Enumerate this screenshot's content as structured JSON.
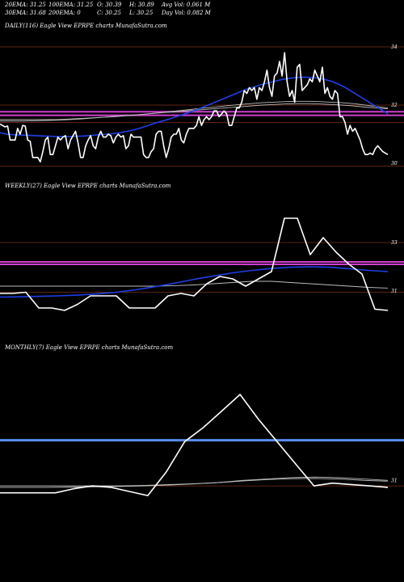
{
  "header": {
    "row1": [
      {
        "label": "20EMA: 31.25"
      },
      {
        "label": "100EMA: 31.25"
      },
      {
        "label": "O: 30.39"
      },
      {
        "label": "H: 30.89"
      },
      {
        "label": "Avg Vol: 0.061 M"
      }
    ],
    "row2": [
      {
        "label": "30EMA: 31.68"
      },
      {
        "label": "200EMA: 0"
      },
      {
        "label": "C: 30.25"
      },
      {
        "label": "L: 30.25"
      },
      {
        "label": "Day Vol: 0.082 M"
      }
    ]
  },
  "colors": {
    "background": "#000000",
    "price": "#ffffff",
    "ema_blue": "#1f3fe8",
    "level_magenta": "#d040d0",
    "level_blue": "#5a8cf0",
    "level_brown": "#7a3018",
    "ma_gray": "#bdbdbd"
  },
  "chart_data": [
    {
      "type": "line",
      "title": "DAILY(116) Eagle   View  EPRPE charts MunafaSutra.com",
      "ylim": [
        29.5,
        34.5
      ],
      "yticks": [
        "34",
        "32",
        "30"
      ],
      "hlines": [
        {
          "y": 34.0,
          "color": "brown"
        },
        {
          "y": 32.0,
          "color": "brown"
        },
        {
          "y": 31.77,
          "color": "magenta"
        },
        {
          "y": 31.65,
          "color": "magenta"
        },
        {
          "y": 31.4,
          "color": "brown"
        },
        {
          "y": 29.9,
          "color": "brown"
        }
      ],
      "series": [
        {
          "color": "white",
          "values": [
            31.35,
            31.3,
            31.25,
            31.28,
            30.8,
            30.8,
            30.8,
            31.2,
            31.0,
            31.3,
            31.28,
            30.8,
            30.75,
            30.2,
            30.2,
            30.2,
            30.05,
            30.4,
            30.8,
            30.9,
            30.3,
            30.3,
            30.6,
            30.9,
            30.8,
            30.9,
            30.95,
            30.5,
            30.8,
            30.95,
            31.1,
            30.7,
            30.2,
            30.2,
            30.6,
            30.8,
            30.95,
            30.6,
            30.5,
            30.9,
            31.1,
            30.9,
            30.9,
            31.0,
            30.95,
            30.7,
            30.9,
            31.0,
            30.9,
            30.95,
            30.5,
            30.6,
            31.0,
            30.9,
            30.9,
            30.9,
            30.9,
            30.3,
            30.2,
            30.2,
            30.4,
            30.5,
            31.0,
            31.1,
            31.1,
            30.6,
            30.2,
            30.5,
            30.9,
            31.0,
            31.0,
            31.2,
            30.8,
            30.7,
            31.0,
            31.2,
            31.2,
            31.2,
            31.3,
            31.6,
            31.3,
            31.5,
            31.6,
            31.5,
            31.6,
            31.8,
            31.8,
            31.6,
            31.7,
            31.8,
            31.7,
            31.3,
            31.3,
            31.6,
            31.9,
            31.9,
            32.1,
            32.5,
            32.4,
            32.6,
            32.5,
            32.6,
            32.2,
            32.6,
            32.5,
            32.8,
            33.2,
            32.6,
            32.3,
            33.0,
            33.1,
            33.5,
            33.0,
            33.8,
            32.8,
            32.3,
            32.5,
            32.1,
            33.3,
            33.4,
            32.5,
            32.6,
            32.7,
            32.9,
            32.8,
            33.2,
            33.0,
            32.8,
            33.3,
            32.4,
            32.6,
            32.3,
            32.2,
            32.5,
            32.4,
            31.6,
            31.6,
            31.4,
            31.0,
            31.3,
            31.1,
            31.2,
            31.0,
            30.8,
            30.5,
            30.3,
            30.3,
            30.35,
            30.3,
            30.5,
            30.6,
            30.5,
            30.4,
            30.35,
            30.3
          ]
        },
        {
          "color": "blue",
          "values": [
            31.05,
            31.0,
            30.98,
            30.97,
            30.96,
            30.95,
            30.94,
            30.93,
            30.92,
            30.92,
            30.92,
            30.93,
            30.94,
            30.96,
            30.98,
            31.0,
            31.02,
            31.05,
            31.1,
            31.15,
            31.22,
            31.3,
            31.38,
            31.45,
            31.52,
            31.6,
            31.68,
            31.76,
            31.85,
            31.95,
            32.05,
            32.15,
            32.25,
            32.35,
            32.45,
            32.55,
            32.62,
            32.7,
            32.76,
            32.82,
            32.88,
            32.92,
            32.95,
            32.96,
            32.95,
            32.93,
            32.88,
            32.82,
            32.72,
            32.6,
            32.45,
            32.3,
            32.15,
            32.0,
            31.85,
            31.7
          ]
        },
        {
          "color": "gray",
          "values": [
            31.5,
            31.5,
            31.5,
            31.5,
            31.5,
            31.5,
            31.52,
            31.54,
            31.56,
            31.58,
            31.6,
            31.63,
            31.66,
            31.7,
            31.74,
            31.78,
            31.82,
            31.86,
            31.9,
            31.94,
            31.98,
            32.02,
            32.05,
            32.08,
            32.1,
            32.12,
            32.13,
            32.13,
            32.12,
            32.1,
            32.08,
            32.05,
            32.0,
            31.95,
            31.9
          ]
        },
        {
          "color": "gray",
          "values": [
            31.45,
            31.45,
            31.45,
            31.46,
            31.47,
            31.48,
            31.5,
            31.52,
            31.55,
            31.58,
            31.61,
            31.64,
            31.67,
            31.7,
            31.73,
            31.76,
            31.79,
            31.82,
            31.85,
            31.88,
            31.91,
            31.94,
            31.97,
            32.0,
            32.02,
            32.04,
            32.05,
            32.05,
            32.04,
            32.02,
            32.0,
            31.97,
            31.93,
            31.9,
            31.87
          ]
        }
      ]
    },
    {
      "type": "line",
      "title": "WEEKLY(27) Eagle   View  EPRPE charts MunafaSutra.com",
      "ylim": [
        29.0,
        35.0
      ],
      "yticks": [
        "33",
        "31"
      ],
      "hlines": [
        {
          "y": 33.0,
          "color": "brown"
        },
        {
          "y": 32.2,
          "color": "magenta"
        },
        {
          "y": 32.1,
          "color": "magenta"
        },
        {
          "y": 30.95,
          "color": "brown"
        }
      ],
      "series": [
        {
          "color": "white",
          "values": [
            30.9,
            30.9,
            30.95,
            30.3,
            30.3,
            30.2,
            30.45,
            30.8,
            30.8,
            30.8,
            30.3,
            30.3,
            30.3,
            30.8,
            30.9,
            30.8,
            31.3,
            31.6,
            31.5,
            31.2,
            31.5,
            31.8,
            34.0,
            34.0,
            32.5,
            33.2,
            32.6,
            32.1,
            31.7,
            30.25,
            30.2
          ]
        },
        {
          "color": "blue",
          "values": [
            30.75,
            30.76,
            30.78,
            30.8,
            30.83,
            30.88,
            30.95,
            31.05,
            31.18,
            31.32,
            31.48,
            31.62,
            31.75,
            31.85,
            31.93,
            31.98,
            32.0,
            31.98,
            31.92,
            31.85,
            31.8
          ]
        },
        {
          "color": "gray",
          "values": [
            31.2,
            31.2,
            31.2,
            31.2,
            31.2,
            31.2,
            31.2,
            31.2,
            31.2,
            31.22,
            31.25,
            31.3,
            31.35,
            31.4,
            31.4,
            31.35,
            31.3,
            31.25,
            31.2,
            31.15,
            31.12
          ]
        }
      ]
    },
    {
      "type": "line",
      "title": "MONTHLY(7) Eagle   View  EPRPE charts MunafaSutra.com",
      "ylim": [
        28.5,
        35.5
      ],
      "yticks": [
        "31"
      ],
      "hlines": [
        {
          "y": 32.45,
          "color": "blue"
        },
        {
          "y": 30.8,
          "color": "brown"
        }
      ],
      "series": [
        {
          "color": "white",
          "values": [
            30.55,
            30.55,
            30.55,
            30.55,
            30.7,
            30.8,
            30.75,
            30.6,
            30.45,
            31.3,
            32.4,
            32.9,
            33.5,
            34.1,
            33.2,
            32.4,
            31.6,
            30.8,
            30.9,
            30.85,
            30.8,
            30.75
          ]
        },
        {
          "color": "gray",
          "values": [
            30.8,
            30.8,
            30.8,
            30.8,
            30.8,
            30.8,
            30.82,
            30.85,
            30.88,
            30.92,
            31.0,
            31.05,
            31.1,
            31.12,
            31.1,
            31.05,
            31.0
          ]
        },
        {
          "color": "gray",
          "values": [
            30.75,
            30.75,
            30.75,
            30.76,
            30.77,
            30.78,
            30.8,
            30.83,
            30.87,
            30.92,
            30.98,
            31.03,
            31.06,
            31.07,
            31.05,
            31.0,
            30.97
          ]
        }
      ]
    }
  ]
}
